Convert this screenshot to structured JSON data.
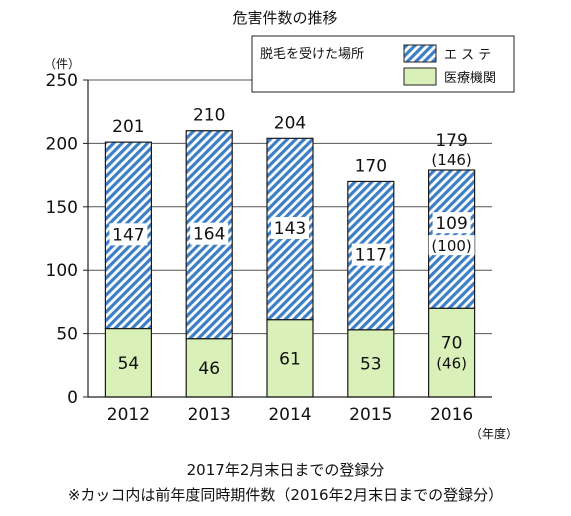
{
  "chart_data": {
    "type": "bar",
    "stacked": true,
    "title": "危害件数の推移",
    "ylabel": "（件）",
    "xlabel": "（年度）",
    "ylim": [
      0,
      250
    ],
    "yticks": [
      0,
      50,
      100,
      150,
      200,
      250
    ],
    "grid": true,
    "categories": [
      "2012",
      "2013",
      "2014",
      "2015",
      "2016"
    ],
    "legend": {
      "title": "脱毛を受けた場所",
      "position": "top-right"
    },
    "series": [
      {
        "name": "医療機関",
        "values": [
          54,
          46,
          61,
          53,
          70
        ],
        "labels": [
          "54",
          "46",
          "61",
          "53",
          "70"
        ],
        "sublabels": [
          "",
          "",
          "",
          "",
          "(46)"
        ],
        "color": "#d9f0b8",
        "pattern": "solid"
      },
      {
        "name": "エ ス テ",
        "values": [
          147,
          164,
          143,
          117,
          109
        ],
        "labels": [
          "147",
          "164",
          "143",
          "117",
          "109"
        ],
        "sublabels": [
          "",
          "",
          "",
          "",
          "(100)"
        ],
        "color": "#3d7fc6",
        "pattern": "hatch"
      }
    ],
    "totals": {
      "labels": [
        "201",
        "210",
        "204",
        "170",
        "179"
      ],
      "sublabels": [
        "",
        "",
        "",
        "",
        "(146)"
      ]
    }
  },
  "notes": [
    "2017年2月末日までの登録分",
    "※カッコ内は前年度同時期件数（2016年2月末日までの登録分）"
  ]
}
